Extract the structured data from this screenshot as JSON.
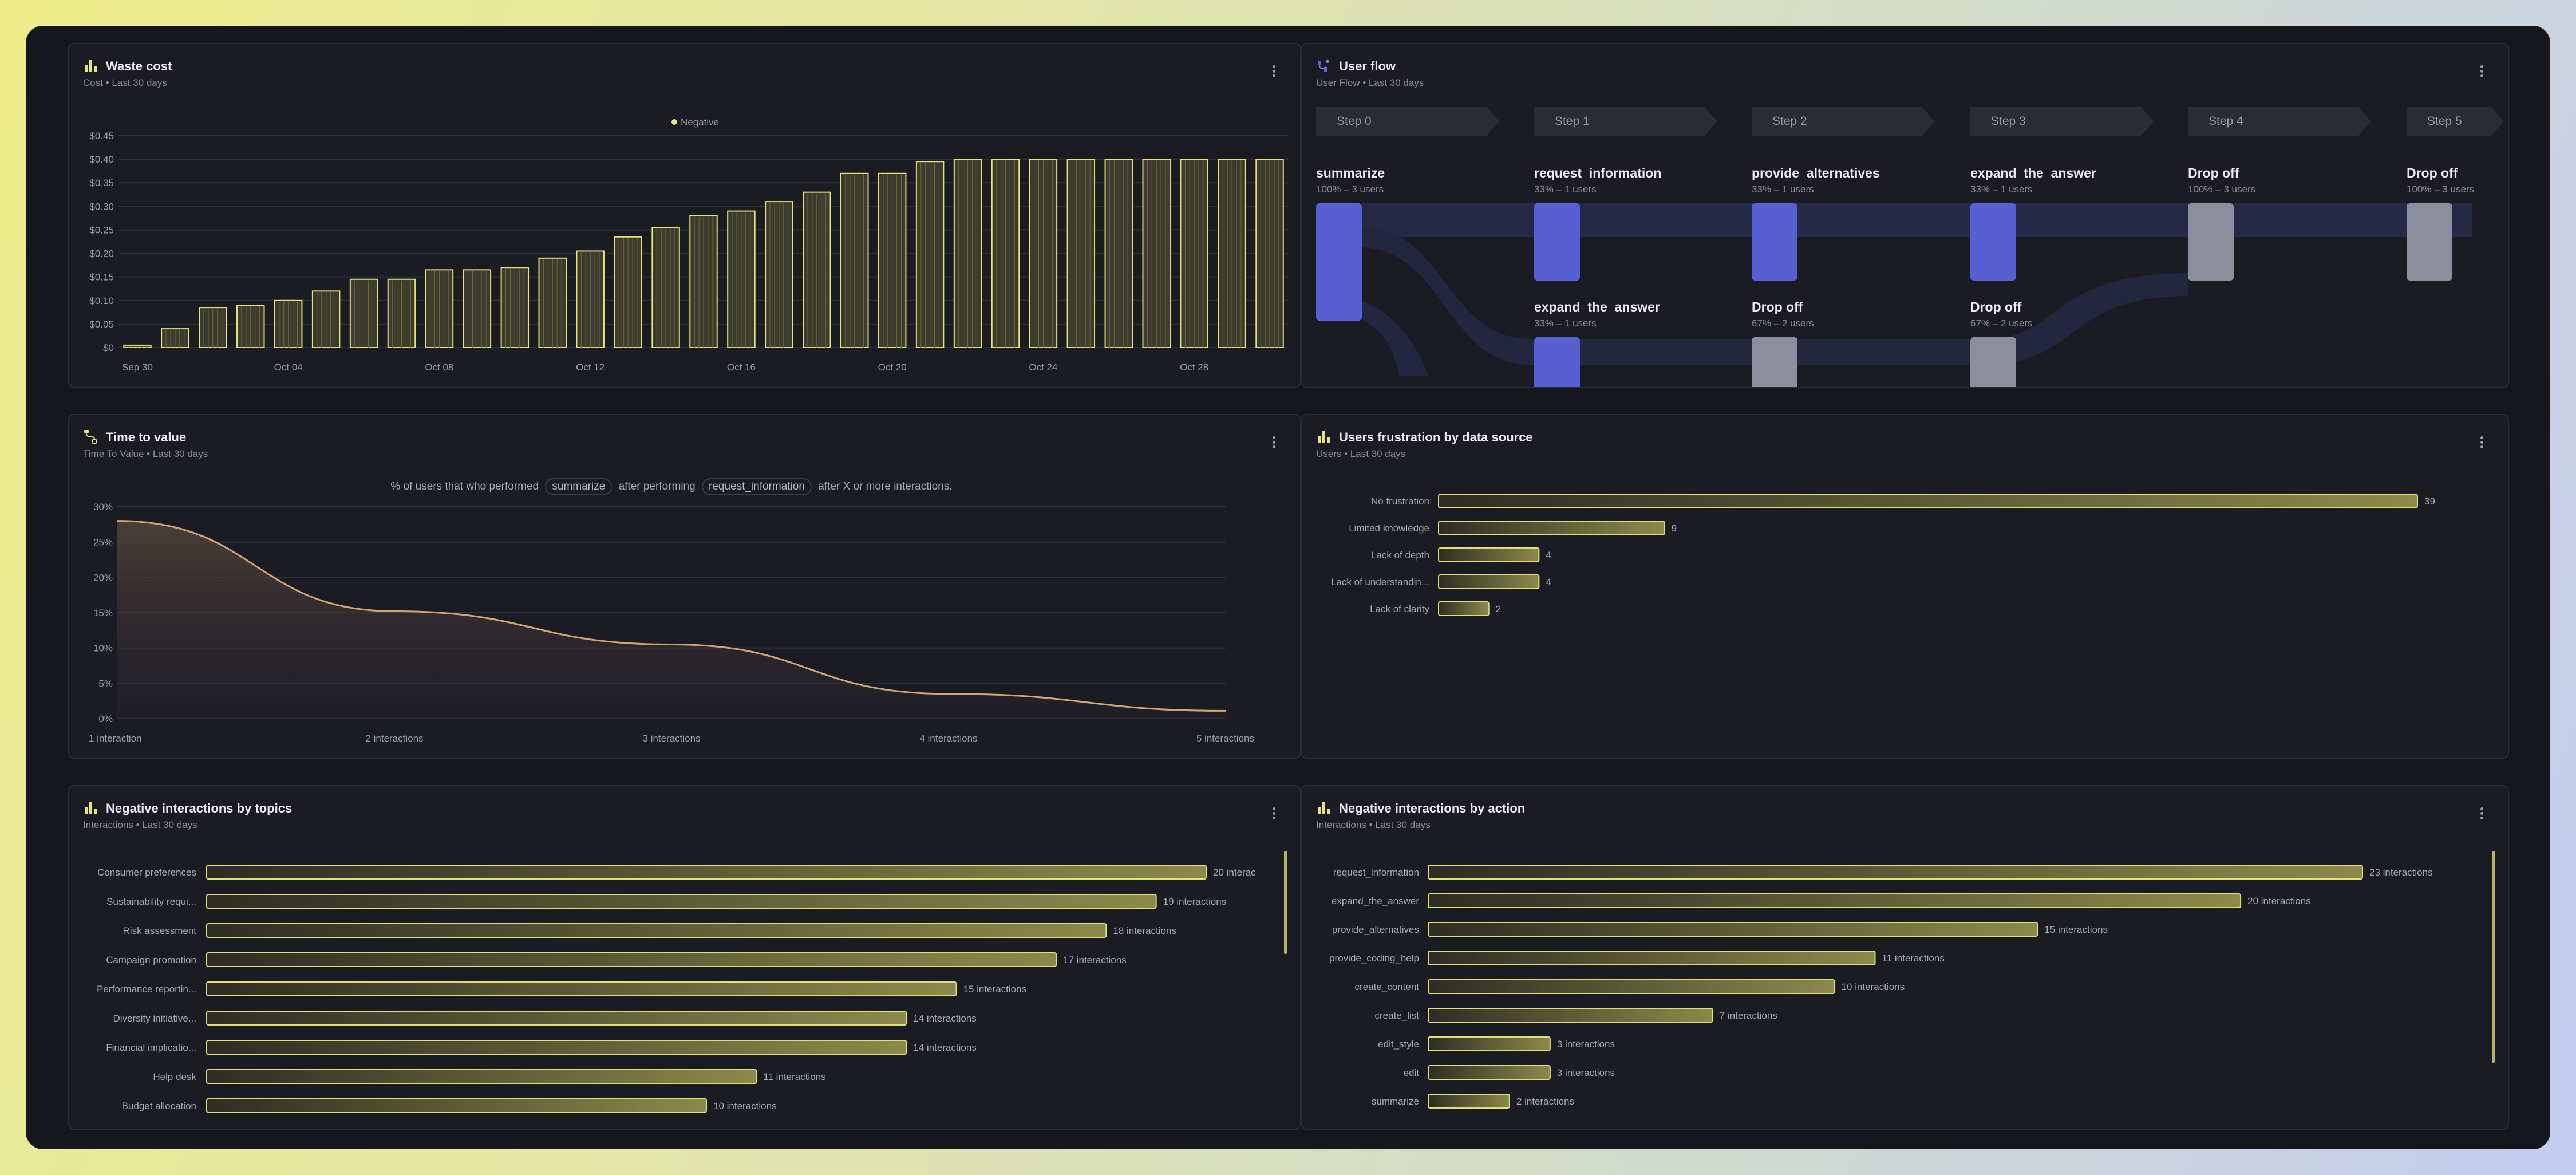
{
  "waste_cost": {
    "title": "Waste cost",
    "subtitle": "Cost • Last 30 days",
    "legend": "Negative",
    "color": "#e8e477"
  },
  "user_flow": {
    "title": "User flow",
    "subtitle": "User Flow • Last 30 days",
    "steps": [
      "Step 0",
      "Step 1",
      "Step 2",
      "Step 3",
      "Step 4",
      "Step 5"
    ],
    "nodes": [
      {
        "label": "summarize",
        "sub": "100% – 3 users"
      },
      {
        "label": "request_information",
        "sub": "33% – 1 users"
      },
      {
        "label": "provide_alternatives",
        "sub": "33% – 1 users"
      },
      {
        "label": "expand_the_answer",
        "sub": "33% – 1 users"
      },
      {
        "label": "Drop off",
        "sub": "100% – 3 users"
      },
      {
        "label": "Drop off",
        "sub": "100% – 3 users"
      },
      {
        "label": "expand_the_answer",
        "sub": "33% – 1 users"
      },
      {
        "label": "Drop off",
        "sub": "67% – 2 users"
      },
      {
        "label": "Drop off",
        "sub": "67% – 2 users"
      }
    ],
    "node_color": "#5660d3",
    "drop_color": "#8c8e9d"
  },
  "time_to_value": {
    "title": "Time to value",
    "subtitle": "Time To Value • Last 30 days",
    "header_prefix": "% of users that who performed",
    "header_pill1": "summarize",
    "header_mid": "after performing",
    "header_pill2": "request_information",
    "header_suffix": "after X or more interactions."
  },
  "frustration": {
    "title": "Users frustration by data source",
    "subtitle": "Users • Last 30 days"
  },
  "neg_topics": {
    "title": "Negative interactions by topics",
    "subtitle": "Interactions • Last 30 days"
  },
  "neg_action": {
    "title": "Negative interactions by action",
    "subtitle": "Interactions • Last 30 days"
  },
  "chart_data": [
    {
      "id": "waste_cost",
      "type": "bar",
      "title": "Waste cost",
      "series_name": "Negative",
      "y_ticks": [
        "$0.45",
        "$0.40",
        "$0.35",
        "$0.30",
        "$0.25",
        "$0.20",
        "$0.15",
        "$0.10",
        "$0.05",
        "$0"
      ],
      "ylim": [
        0,
        0.45
      ],
      "x_tick_labels": [
        "Sep 30",
        "Oct 04",
        "Oct 08",
        "Oct 12",
        "Oct 16",
        "Oct 20",
        "Oct 24",
        "Oct 28"
      ],
      "values": [
        0.005,
        0.04,
        0.085,
        0.09,
        0.1,
        0.12,
        0.145,
        0.145,
        0.165,
        0.165,
        0.17,
        0.19,
        0.205,
        0.235,
        0.255,
        0.28,
        0.29,
        0.31,
        0.33,
        0.37,
        0.37,
        0.395,
        0.4,
        0.4,
        0.4,
        0.4,
        0.4,
        0.4,
        0.4,
        0.4,
        0.4
      ]
    },
    {
      "id": "time_to_value",
      "type": "area",
      "title": "Time to value",
      "categories": [
        "1 interaction",
        "2 interactions",
        "3 interactions",
        "4 interactions",
        "5 interactions"
      ],
      "y_ticks": [
        "30%",
        "25%",
        "20%",
        "15%",
        "10%",
        "5%",
        "0%"
      ],
      "ylim": [
        0,
        30
      ],
      "values": [
        28,
        15.2,
        10.5,
        3.5,
        1.1
      ]
    },
    {
      "id": "frustration",
      "type": "bar",
      "orientation": "horizontal",
      "categories": [
        "No frustration",
        "Limited knowledge",
        "Lack of depth",
        "Lack of understandin...",
        "Lack of clarity"
      ],
      "values": [
        39,
        9,
        4,
        4,
        2
      ],
      "value_labels": [
        "39",
        "9",
        "4",
        "4",
        "2"
      ],
      "xlim": [
        0,
        39
      ]
    },
    {
      "id": "neg_topics",
      "type": "bar",
      "orientation": "horizontal",
      "categories": [
        "Consumer preferences",
        "Sustainability requi...",
        "Risk assessment",
        "Campaign promotion",
        "Performance reportin...",
        "Diversity initiative...",
        "Financial implicatio...",
        "Help desk",
        "Budget allocation"
      ],
      "values": [
        20,
        19,
        18,
        17,
        15,
        14,
        14,
        11,
        10
      ],
      "value_labels": [
        "20 interac",
        "19 interactions",
        "18 interactions",
        "17 interactions",
        "15 interactions",
        "14 interactions",
        "14 interactions",
        "11 interactions",
        "10 interactions"
      ],
      "xlim": [
        0,
        20
      ]
    },
    {
      "id": "neg_action",
      "type": "bar",
      "orientation": "horizontal",
      "categories": [
        "request_information",
        "expand_the_answer",
        "provide_alternatives",
        "provide_coding_help",
        "create_content",
        "create_list",
        "edit_style",
        "edit",
        "summarize"
      ],
      "values": [
        23,
        20,
        15,
        11,
        10,
        7,
        3,
        3,
        2
      ],
      "value_labels": [
        "23 interactions",
        "20 interactions",
        "15 interactions",
        "11 interactions",
        "10 interactions",
        "7 interactions",
        "3 interactions",
        "3 interactions",
        "2 interactions"
      ],
      "xlim": [
        0,
        23
      ]
    }
  ]
}
